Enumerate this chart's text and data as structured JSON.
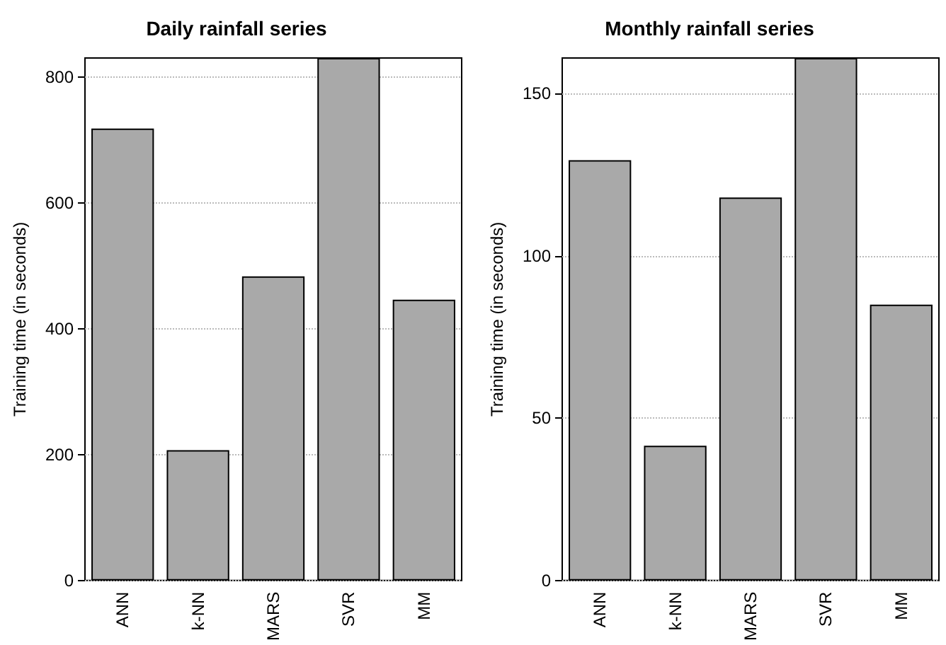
{
  "chart_data": [
    {
      "type": "bar",
      "title": "Daily rainfall series",
      "ylabel": "Training time (in seconds)",
      "categories": [
        "ANN",
        "k-NN",
        "MARS",
        "SVR",
        "MM"
      ],
      "values": [
        718,
        207,
        483,
        830,
        446
      ],
      "color": "#a9a9a9",
      "ylim": [
        0,
        830
      ],
      "yticks": [
        0,
        200,
        400,
        600,
        800
      ],
      "grid": "y"
    },
    {
      "type": "bar",
      "title": "Monthly rainfall series",
      "ylabel": "Training time (in seconds)",
      "categories": [
        "ANN",
        "k-NN",
        "MARS",
        "SVR",
        "MM"
      ],
      "values": [
        129.5,
        41.5,
        118,
        161,
        85
      ],
      "color": "#a9a9a9",
      "ylim": [
        0,
        161
      ],
      "yticks": [
        0,
        50,
        100,
        150
      ],
      "grid": "y"
    }
  ]
}
